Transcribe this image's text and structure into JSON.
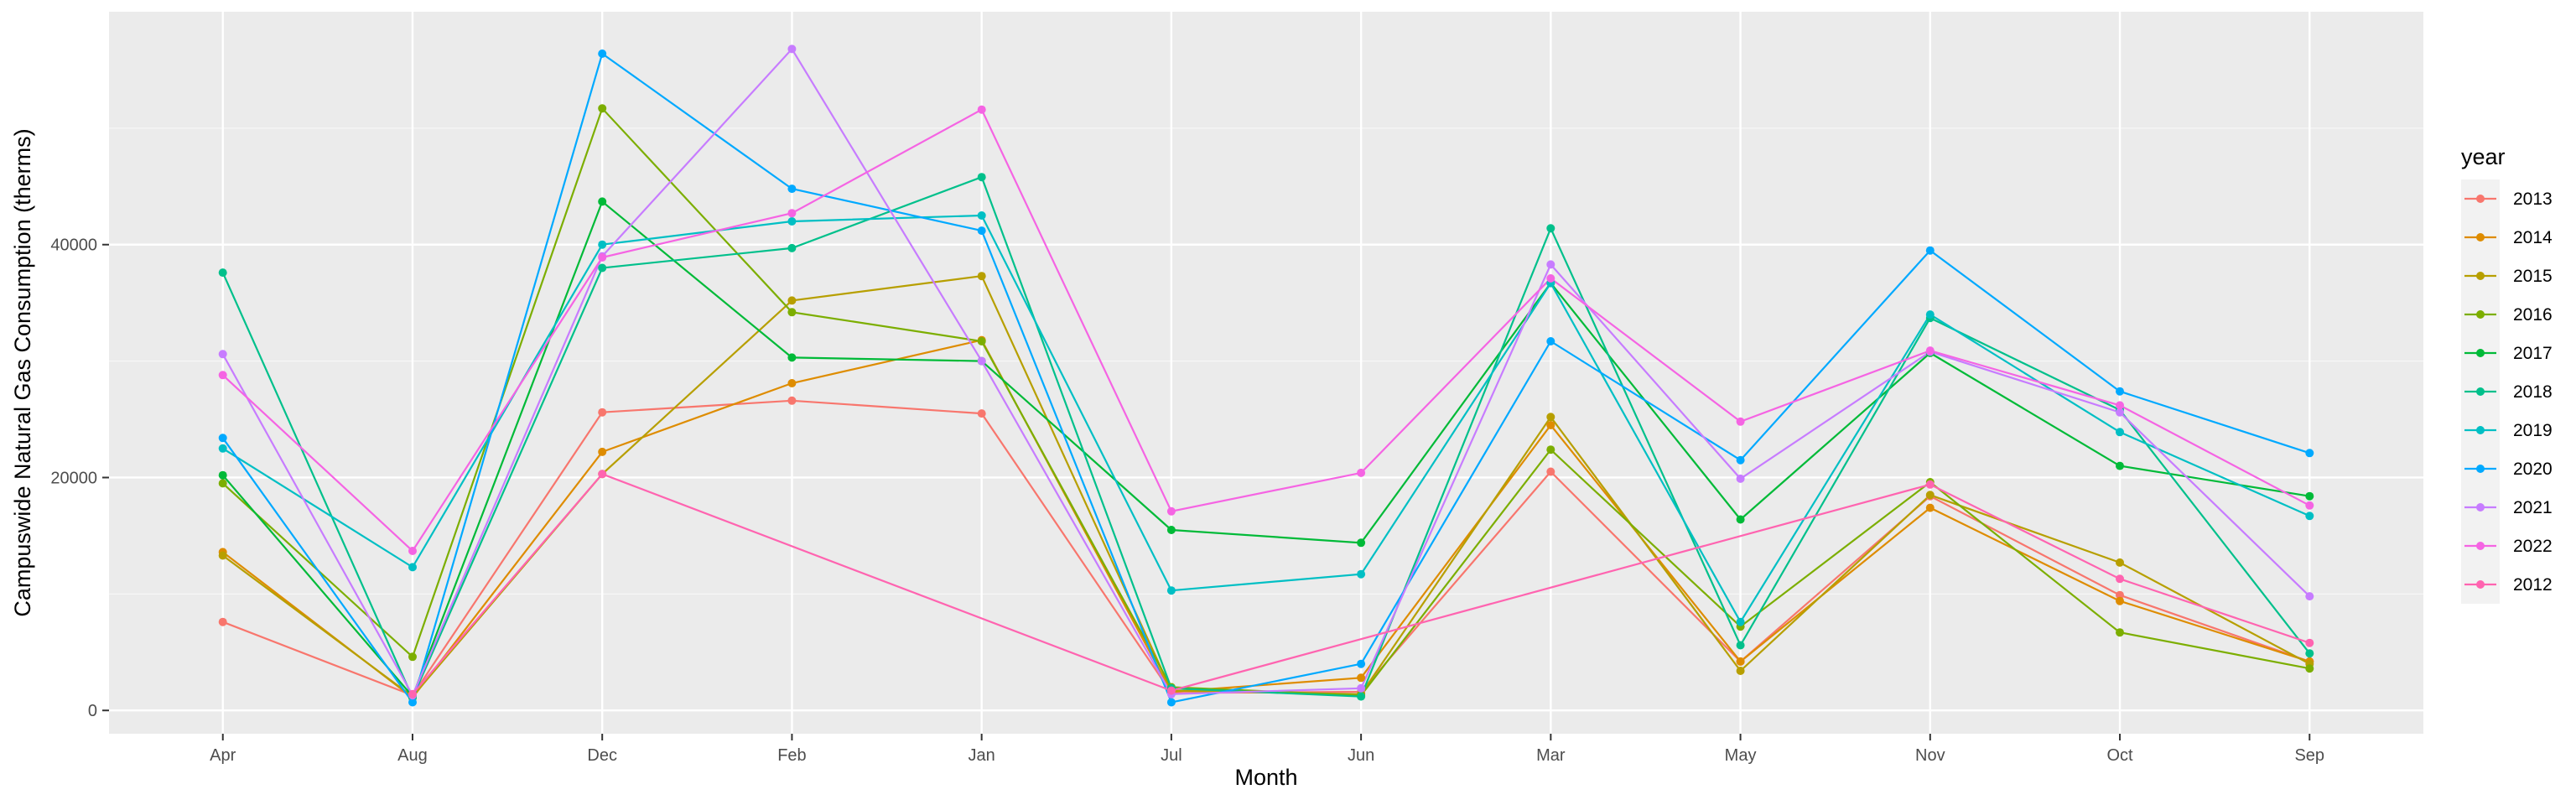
{
  "chart_data": {
    "type": "line",
    "xlabel": "Month",
    "ylabel": "Campuswide Natural Gas Consumption (therms)",
    "categories": [
      "Apr",
      "Aug",
      "Dec",
      "Feb",
      "Jan",
      "Jul",
      "Jun",
      "Mar",
      "May",
      "Nov",
      "Oct",
      "Sep"
    ],
    "ylim": [
      -2000,
      60000
    ],
    "yticks": [
      0,
      20000,
      40000
    ],
    "ytick_labels": [
      "0",
      "20000",
      "40000"
    ],
    "grid": true,
    "legend": {
      "title": "year",
      "position": "right"
    },
    "series": [
      {
        "name": "2013",
        "color": "#F8766D",
        "values": [
          7600,
          1300,
          25600,
          26600,
          25500,
          1500,
          1600,
          20500,
          4200,
          18400,
          9900,
          4200
        ]
      },
      {
        "name": "2014",
        "color": "#DE8C00",
        "values": [
          13600,
          1100,
          22200,
          28100,
          31800,
          1600,
          2800,
          24500,
          4200,
          17400,
          9400,
          4200
        ]
      },
      {
        "name": "2015",
        "color": "#B79F00",
        "values": [
          13300,
          1200,
          20300,
          35200,
          37300,
          1700,
          1400,
          25200,
          3400,
          18500,
          12700,
          4000
        ]
      },
      {
        "name": "2016",
        "color": "#7CAE00",
        "values": [
          19500,
          4600,
          51700,
          34200,
          31700,
          2000,
          1300,
          22400,
          7200,
          19600,
          6700,
          3600
        ]
      },
      {
        "name": "2017",
        "color": "#00BA38",
        "values": [
          20200,
          1200,
          43700,
          30300,
          30000,
          15500,
          14400,
          36700,
          16400,
          30700,
          21000,
          18400
        ]
      },
      {
        "name": "2018",
        "color": "#00C08B",
        "values": [
          37600,
          1100,
          38000,
          39700,
          45800,
          1900,
          1200,
          41400,
          5600,
          33700,
          25800,
          4900
        ]
      },
      {
        "name": "2019",
        "color": "#00BFC4",
        "values": [
          22500,
          12300,
          40000,
          42000,
          42500,
          10300,
          11700,
          36700,
          7600,
          34000,
          23900,
          16700
        ]
      },
      {
        "name": "2020",
        "color": "#00A9FF",
        "values": [
          23400,
          700,
          56400,
          44800,
          41200,
          700,
          4000,
          31700,
          21500,
          39500,
          27400,
          22100
        ]
      },
      {
        "name": "2021",
        "color": "#C77CFF",
        "values": [
          30600,
          1300,
          39000,
          56800,
          30000,
          1400,
          1900,
          38300,
          19900,
          30800,
          25600,
          9800
        ]
      },
      {
        "name": "2022",
        "color": "#F564E3",
        "values": [
          28800,
          13700,
          38900,
          42700,
          51600,
          17100,
          20400,
          37100,
          24800,
          30900,
          26200,
          17600
        ]
      },
      {
        "name": "2012",
        "color": "#FF64B0",
        "points": [
          [
            "Aug",
            1400
          ],
          [
            "Dec",
            20300
          ],
          [
            "Jul",
            1700
          ],
          [
            "Nov",
            19400
          ],
          [
            "Oct",
            11300
          ],
          [
            "Sep",
            5800
          ]
        ]
      }
    ]
  }
}
